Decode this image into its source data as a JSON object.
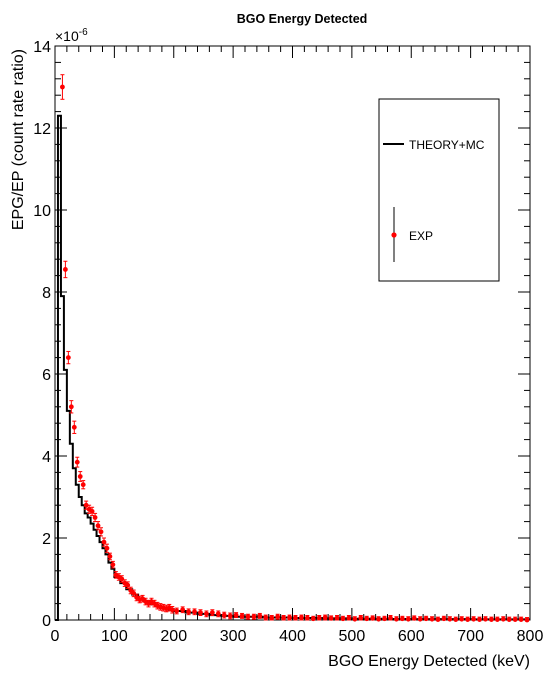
{
  "chart_data": {
    "type": "line",
    "title": "BGO Energy Detected",
    "xlabel": "BGO Energy Detected (keV)",
    "ylabel": "EPG/EP (count rate ratio)",
    "y_exponent_label": "×10",
    "y_exponent_power": "-6",
    "xlim": [
      0,
      800
    ],
    "ylim": [
      0,
      14
    ],
    "x_ticks": [
      0,
      100,
      200,
      300,
      400,
      500,
      600,
      700,
      800
    ],
    "y_ticks": [
      0,
      2,
      4,
      6,
      8,
      10,
      12,
      14
    ],
    "grid": false,
    "legend_position": "top-right",
    "legend": [
      {
        "label": "THEORY+MC",
        "style": "line",
        "color": "#000000"
      },
      {
        "label": "EXP",
        "style": "marker-errorbar",
        "color": "#ff0000"
      }
    ],
    "series": [
      {
        "name": "THEORY+MC",
        "kind": "histogram-step",
        "color": "#000000",
        "bins": [
          [
            0,
            5,
            0
          ],
          [
            5,
            10,
            12.3
          ],
          [
            10,
            15,
            7.9
          ],
          [
            15,
            20,
            6.1
          ],
          [
            20,
            25,
            5.1
          ],
          [
            25,
            30,
            4.3
          ],
          [
            30,
            35,
            3.7
          ],
          [
            35,
            40,
            3.3
          ],
          [
            40,
            45,
            3.0
          ],
          [
            45,
            50,
            2.8
          ],
          [
            50,
            55,
            2.6
          ],
          [
            55,
            60,
            2.5
          ],
          [
            60,
            65,
            2.35
          ],
          [
            65,
            70,
            2.2
          ],
          [
            70,
            75,
            2.05
          ],
          [
            75,
            80,
            1.9
          ],
          [
            80,
            85,
            1.75
          ],
          [
            85,
            90,
            1.6
          ],
          [
            90,
            95,
            1.4
          ],
          [
            95,
            100,
            1.25
          ],
          [
            100,
            110,
            1.05
          ],
          [
            110,
            120,
            0.9
          ],
          [
            120,
            130,
            0.75
          ],
          [
            130,
            140,
            0.62
          ],
          [
            140,
            150,
            0.52
          ],
          [
            150,
            160,
            0.45
          ],
          [
            160,
            170,
            0.38
          ],
          [
            170,
            180,
            0.33
          ],
          [
            180,
            190,
            0.29
          ],
          [
            190,
            200,
            0.26
          ],
          [
            200,
            220,
            0.22
          ],
          [
            220,
            240,
            0.18
          ],
          [
            240,
            260,
            0.15
          ],
          [
            260,
            280,
            0.12
          ],
          [
            280,
            300,
            0.1
          ],
          [
            300,
            350,
            0.08
          ],
          [
            350,
            400,
            0.06
          ],
          [
            400,
            450,
            0.05
          ],
          [
            450,
            500,
            0.04
          ],
          [
            500,
            550,
            0.03
          ],
          [
            550,
            600,
            0.025
          ],
          [
            600,
            700,
            0.02
          ],
          [
            700,
            800,
            0.015
          ]
        ]
      },
      {
        "name": "EXP",
        "kind": "points-with-errors",
        "color": "#ff0000",
        "points": [
          [
            12.5,
            13.0,
            0.3
          ],
          [
            17.5,
            8.55,
            0.2
          ],
          [
            22.5,
            6.4,
            0.15
          ],
          [
            27.5,
            5.2,
            0.15
          ],
          [
            32.5,
            4.7,
            0.15
          ],
          [
            37.5,
            3.85,
            0.12
          ],
          [
            42.5,
            3.5,
            0.12
          ],
          [
            47.5,
            3.3,
            0.1
          ],
          [
            52.5,
            2.8,
            0.1
          ],
          [
            57.5,
            2.7,
            0.1
          ],
          [
            62.5,
            2.65,
            0.1
          ],
          [
            67.5,
            2.5,
            0.1
          ],
          [
            72.5,
            2.3,
            0.1
          ],
          [
            77.5,
            2.15,
            0.1
          ],
          [
            82.5,
            1.9,
            0.1
          ],
          [
            87.5,
            1.75,
            0.1
          ],
          [
            92.5,
            1.55,
            0.08
          ],
          [
            97.5,
            1.35,
            0.08
          ],
          [
            102.5,
            1.1,
            0.08
          ],
          [
            107.5,
            1.05,
            0.08
          ],
          [
            112.5,
            1.0,
            0.08
          ],
          [
            117.5,
            0.9,
            0.08
          ],
          [
            122.5,
            0.85,
            0.08
          ],
          [
            127.5,
            0.72,
            0.08
          ],
          [
            132.5,
            0.65,
            0.08
          ],
          [
            137.5,
            0.55,
            0.08
          ],
          [
            142.5,
            0.5,
            0.08
          ],
          [
            147.5,
            0.52,
            0.08
          ],
          [
            152.5,
            0.45,
            0.08
          ],
          [
            157.5,
            0.4,
            0.08
          ],
          [
            162.5,
            0.45,
            0.08
          ],
          [
            167.5,
            0.4,
            0.08
          ],
          [
            172.5,
            0.35,
            0.08
          ],
          [
            177.5,
            0.32,
            0.08
          ],
          [
            182.5,
            0.3,
            0.08
          ],
          [
            187.5,
            0.28,
            0.08
          ],
          [
            192.5,
            0.3,
            0.08
          ],
          [
            197.5,
            0.25,
            0.08
          ],
          [
            205,
            0.22,
            0.07
          ],
          [
            215,
            0.25,
            0.07
          ],
          [
            225,
            0.2,
            0.07
          ],
          [
            235,
            0.2,
            0.07
          ],
          [
            245,
            0.18,
            0.07
          ],
          [
            255,
            0.15,
            0.07
          ],
          [
            265,
            0.18,
            0.07
          ],
          [
            275,
            0.15,
            0.07
          ],
          [
            285,
            0.12,
            0.07
          ],
          [
            295,
            0.1,
            0.07
          ],
          [
            305,
            0.12,
            0.06
          ],
          [
            315,
            0.1,
            0.06
          ],
          [
            325,
            0.08,
            0.06
          ],
          [
            335,
            0.08,
            0.06
          ],
          [
            345,
            0.1,
            0.06
          ],
          [
            355,
            0.06,
            0.06
          ],
          [
            365,
            0.05,
            0.06
          ],
          [
            375,
            0.08,
            0.06
          ],
          [
            385,
            0.05,
            0.06
          ],
          [
            395,
            0.06,
            0.06
          ],
          [
            405,
            0.05,
            0.06
          ],
          [
            415,
            0.06,
            0.06
          ],
          [
            425,
            0.05,
            0.06
          ],
          [
            435,
            0.03,
            0.06
          ],
          [
            445,
            0.05,
            0.06
          ],
          [
            455,
            0.06,
            0.06
          ],
          [
            465,
            0.04,
            0.06
          ],
          [
            475,
            0.05,
            0.06
          ],
          [
            485,
            0.03,
            0.06
          ],
          [
            495,
            0.05,
            0.06
          ],
          [
            505,
            0.02,
            0.06
          ],
          [
            515,
            0.05,
            0.06
          ],
          [
            525,
            0.03,
            0.06
          ],
          [
            535,
            0.04,
            0.06
          ],
          [
            545,
            0.02,
            0.06
          ],
          [
            555,
            0.03,
            0.06
          ],
          [
            565,
            0.05,
            0.06
          ],
          [
            575,
            0.02,
            0.06
          ],
          [
            585,
            0.03,
            0.06
          ],
          [
            595,
            0.02,
            0.06
          ],
          [
            605,
            0.04,
            0.06
          ],
          [
            615,
            0.02,
            0.06
          ],
          [
            625,
            0.03,
            0.06
          ],
          [
            635,
            0.02,
            0.06
          ],
          [
            645,
            0.01,
            0.06
          ],
          [
            655,
            0.03,
            0.06
          ],
          [
            665,
            0.02,
            0.06
          ],
          [
            675,
            0.01,
            0.06
          ],
          [
            685,
            0.02,
            0.06
          ],
          [
            695,
            0.01,
            0.06
          ],
          [
            705,
            0.02,
            0.06
          ],
          [
            715,
            0.01,
            0.06
          ],
          [
            725,
            0.02,
            0.06
          ],
          [
            735,
            0.01,
            0.06
          ],
          [
            745,
            0.01,
            0.06
          ],
          [
            755,
            0.02,
            0.06
          ],
          [
            765,
            0.01,
            0.06
          ],
          [
            775,
            0.01,
            0.06
          ],
          [
            785,
            0.01,
            0.06
          ],
          [
            795,
            0.0,
            0.06
          ]
        ]
      }
    ]
  }
}
